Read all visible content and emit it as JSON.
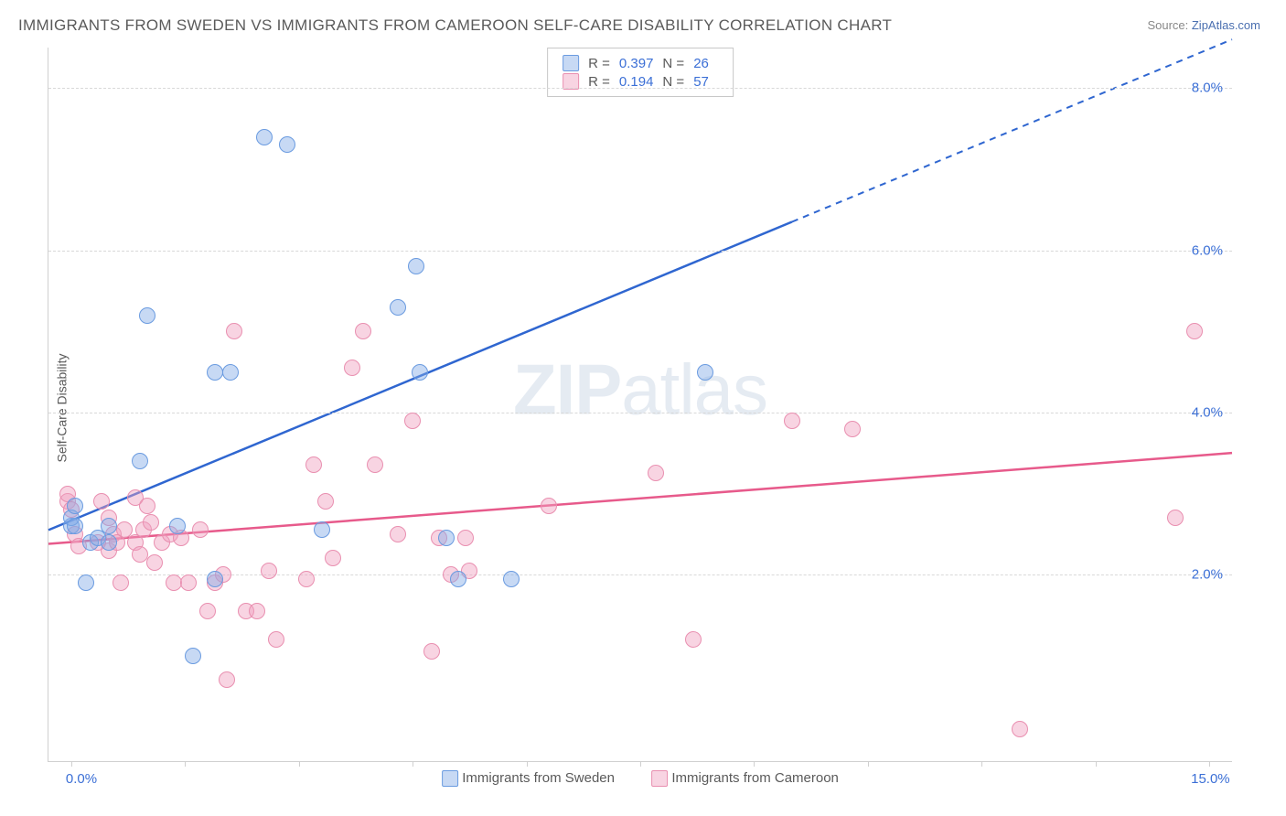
{
  "title": "IMMIGRANTS FROM SWEDEN VS IMMIGRANTS FROM CAMEROON SELF-CARE DISABILITY CORRELATION CHART",
  "source_prefix": "Source: ",
  "source_link": "ZipAtlas.com",
  "ylabel": "Self-Care Disability",
  "watermark_a": "ZIP",
  "watermark_b": "atlas",
  "chart": {
    "type": "scatter",
    "xlim": [
      -0.3,
      15.3
    ],
    "ylim": [
      -0.3,
      8.5
    ],
    "xticks": [
      0.0,
      1.5,
      3.0,
      4.5,
      6.0,
      7.5,
      9.0,
      10.5,
      12.0,
      13.5,
      15.0
    ],
    "xtick_labels": {
      "0": "0.0%",
      "15": "15.0%"
    },
    "yticks": [
      0.0,
      2.0,
      4.0,
      6.0,
      8.0
    ],
    "ytick_labels": {
      "2": "2.0%",
      "4": "4.0%",
      "6": "6.0%",
      "8": "8.0%"
    },
    "grid_color": "#d8d8d8",
    "axis_color": "#d0d0d0",
    "background": "#ffffff",
    "marker_size": 18,
    "series": [
      {
        "name": "Immigrants from Sweden",
        "fill": "rgba(130,170,230,0.45)",
        "stroke": "#6a9be0",
        "line_color": "#2f66d0",
        "r": "0.397",
        "n": "26",
        "trend": {
          "x1": -0.3,
          "y1": 2.55,
          "x2": 15.3,
          "y2": 8.6,
          "solid_until_x": 9.5
        },
        "points": [
          [
            0.0,
            2.6
          ],
          [
            0.0,
            2.7
          ],
          [
            0.05,
            2.85
          ],
          [
            0.05,
            2.6
          ],
          [
            0.2,
            1.9
          ],
          [
            0.25,
            2.4
          ],
          [
            0.35,
            2.45
          ],
          [
            0.5,
            2.6
          ],
          [
            0.5,
            2.4
          ],
          [
            0.9,
            3.4
          ],
          [
            1.0,
            5.2
          ],
          [
            1.4,
            2.6
          ],
          [
            1.6,
            1.0
          ],
          [
            1.9,
            4.5
          ],
          [
            2.1,
            4.5
          ],
          [
            1.9,
            1.95
          ],
          [
            2.55,
            7.4
          ],
          [
            2.85,
            7.3
          ],
          [
            3.3,
            2.55
          ],
          [
            4.3,
            5.3
          ],
          [
            4.55,
            5.8
          ],
          [
            4.6,
            4.5
          ],
          [
            4.95,
            2.45
          ],
          [
            5.1,
            1.95
          ],
          [
            5.8,
            1.95
          ],
          [
            8.35,
            4.5
          ]
        ]
      },
      {
        "name": "Immigrants from Cameroon",
        "fill": "rgba(240,160,190,0.45)",
        "stroke": "#e98fb0",
        "line_color": "#e75a8b",
        "r": "0.194",
        "n": "57",
        "trend": {
          "x1": -0.3,
          "y1": 2.38,
          "x2": 15.3,
          "y2": 3.5,
          "solid_until_x": 15.3
        },
        "points": [
          [
            -0.05,
            2.9
          ],
          [
            -0.05,
            3.0
          ],
          [
            0.0,
            2.8
          ],
          [
            0.05,
            2.5
          ],
          [
            0.1,
            2.35
          ],
          [
            0.35,
            2.4
          ],
          [
            0.4,
            2.9
          ],
          [
            0.5,
            2.7
          ],
          [
            0.5,
            2.3
          ],
          [
            0.55,
            2.5
          ],
          [
            0.6,
            2.4
          ],
          [
            0.65,
            1.9
          ],
          [
            0.7,
            2.55
          ],
          [
            0.85,
            2.95
          ],
          [
            0.85,
            2.4
          ],
          [
            0.9,
            2.25
          ],
          [
            0.95,
            2.55
          ],
          [
            1.0,
            2.85
          ],
          [
            1.05,
            2.65
          ],
          [
            1.1,
            2.15
          ],
          [
            1.2,
            2.4
          ],
          [
            1.3,
            2.5
          ],
          [
            1.35,
            1.9
          ],
          [
            1.45,
            2.45
          ],
          [
            1.55,
            1.9
          ],
          [
            1.7,
            2.55
          ],
          [
            1.8,
            1.55
          ],
          [
            1.9,
            1.9
          ],
          [
            2.0,
            2.0
          ],
          [
            2.05,
            0.7
          ],
          [
            2.15,
            5.0
          ],
          [
            2.3,
            1.55
          ],
          [
            2.45,
            1.55
          ],
          [
            2.6,
            2.05
          ],
          [
            2.7,
            1.2
          ],
          [
            3.1,
            1.95
          ],
          [
            3.2,
            3.35
          ],
          [
            3.35,
            2.9
          ],
          [
            3.45,
            2.2
          ],
          [
            3.7,
            4.55
          ],
          [
            3.85,
            5.0
          ],
          [
            4.0,
            3.35
          ],
          [
            4.3,
            2.5
          ],
          [
            4.5,
            3.9
          ],
          [
            4.75,
            1.05
          ],
          [
            4.85,
            2.45
          ],
          [
            5.0,
            2.0
          ],
          [
            5.2,
            2.45
          ],
          [
            5.25,
            2.05
          ],
          [
            6.3,
            2.85
          ],
          [
            7.7,
            3.25
          ],
          [
            8.2,
            1.2
          ],
          [
            9.5,
            3.9
          ],
          [
            10.3,
            3.8
          ],
          [
            12.5,
            0.1
          ],
          [
            14.55,
            2.7
          ],
          [
            14.8,
            5.0
          ]
        ]
      }
    ]
  },
  "legend_labels": {
    "R": "R =",
    "N": "N ="
  }
}
